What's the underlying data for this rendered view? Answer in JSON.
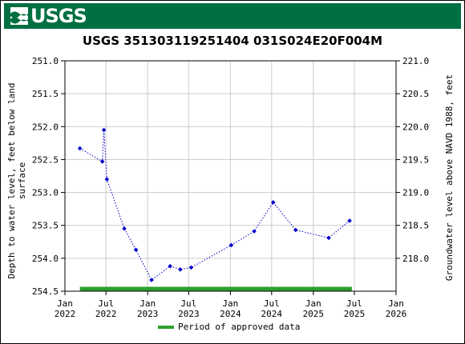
{
  "banner": {
    "logo_text": "USGS"
  },
  "chart_data": {
    "type": "scatter",
    "title": "USGS 351303119251404 031S024E20F004M",
    "ylabel_left": "Depth to water level, feet below land\nsurface",
    "ylabel_right": "Groundwater level above NAVD 1988, feet",
    "yleft_range": [
      251.0,
      254.5
    ],
    "yleft_ticks": [
      "251.0",
      "251.5",
      "252.0",
      "252.5",
      "253.0",
      "253.5",
      "254.0",
      "254.5"
    ],
    "yright_ticks": [
      "221.0",
      "220.5",
      "220.0",
      "219.5",
      "219.0",
      "218.5",
      "218.0"
    ],
    "yright_values": [
      221.0,
      220.5,
      220.0,
      219.5,
      219.0,
      218.5,
      218.0
    ],
    "datum_offset": 472.0,
    "x_range": [
      "2022-01-01",
      "2026-01-01"
    ],
    "x_ticks": [
      {
        "date": "2022-01-01",
        "line1": "Jan",
        "line2": "2022"
      },
      {
        "date": "2022-07-01",
        "line1": "Jul",
        "line2": "2022"
      },
      {
        "date": "2023-01-01",
        "line1": "Jan",
        "line2": "2023"
      },
      {
        "date": "2023-07-01",
        "line1": "Jul",
        "line2": "2023"
      },
      {
        "date": "2024-01-01",
        "line1": "Jan",
        "line2": "2024"
      },
      {
        "date": "2024-07-01",
        "line1": "Jul",
        "line2": "2024"
      },
      {
        "date": "2025-01-01",
        "line1": "Jan",
        "line2": "2025"
      },
      {
        "date": "2025-07-01",
        "line1": "Jul",
        "line2": "2025"
      },
      {
        "date": "2026-01-01",
        "line1": "Jan",
        "line2": "2026"
      }
    ],
    "series": [
      {
        "points": [
          {
            "x": "2022-03-08",
            "y": 252.33
          },
          {
            "x": "2022-06-15",
            "y": 252.53
          },
          {
            "x": "2022-06-22",
            "y": 252.05
          },
          {
            "x": "2022-07-05",
            "y": 252.8
          },
          {
            "x": "2022-09-20",
            "y": 253.55
          },
          {
            "x": "2022-11-10",
            "y": 253.87
          },
          {
            "x": "2023-01-18",
            "y": 254.33
          },
          {
            "x": "2023-04-10",
            "y": 254.12
          },
          {
            "x": "2023-05-25",
            "y": 254.17
          },
          {
            "x": "2023-07-12",
            "y": 254.14
          },
          {
            "x": "2024-01-05",
            "y": 253.8
          },
          {
            "x": "2024-04-15",
            "y": 253.59
          },
          {
            "x": "2024-07-08",
            "y": 253.15
          },
          {
            "x": "2024-10-15",
            "y": 253.57
          },
          {
            "x": "2025-03-10",
            "y": 253.69
          },
          {
            "x": "2025-06-10",
            "y": 253.43
          }
        ],
        "color": "#0000cc",
        "style": "dotted"
      }
    ],
    "approved_period": {
      "start": "2022-03-08",
      "end": "2025-06-20",
      "color": "#2ca02c"
    },
    "legend": {
      "label": "Period of approved data",
      "placement": "bottom-center"
    },
    "grid": true
  }
}
